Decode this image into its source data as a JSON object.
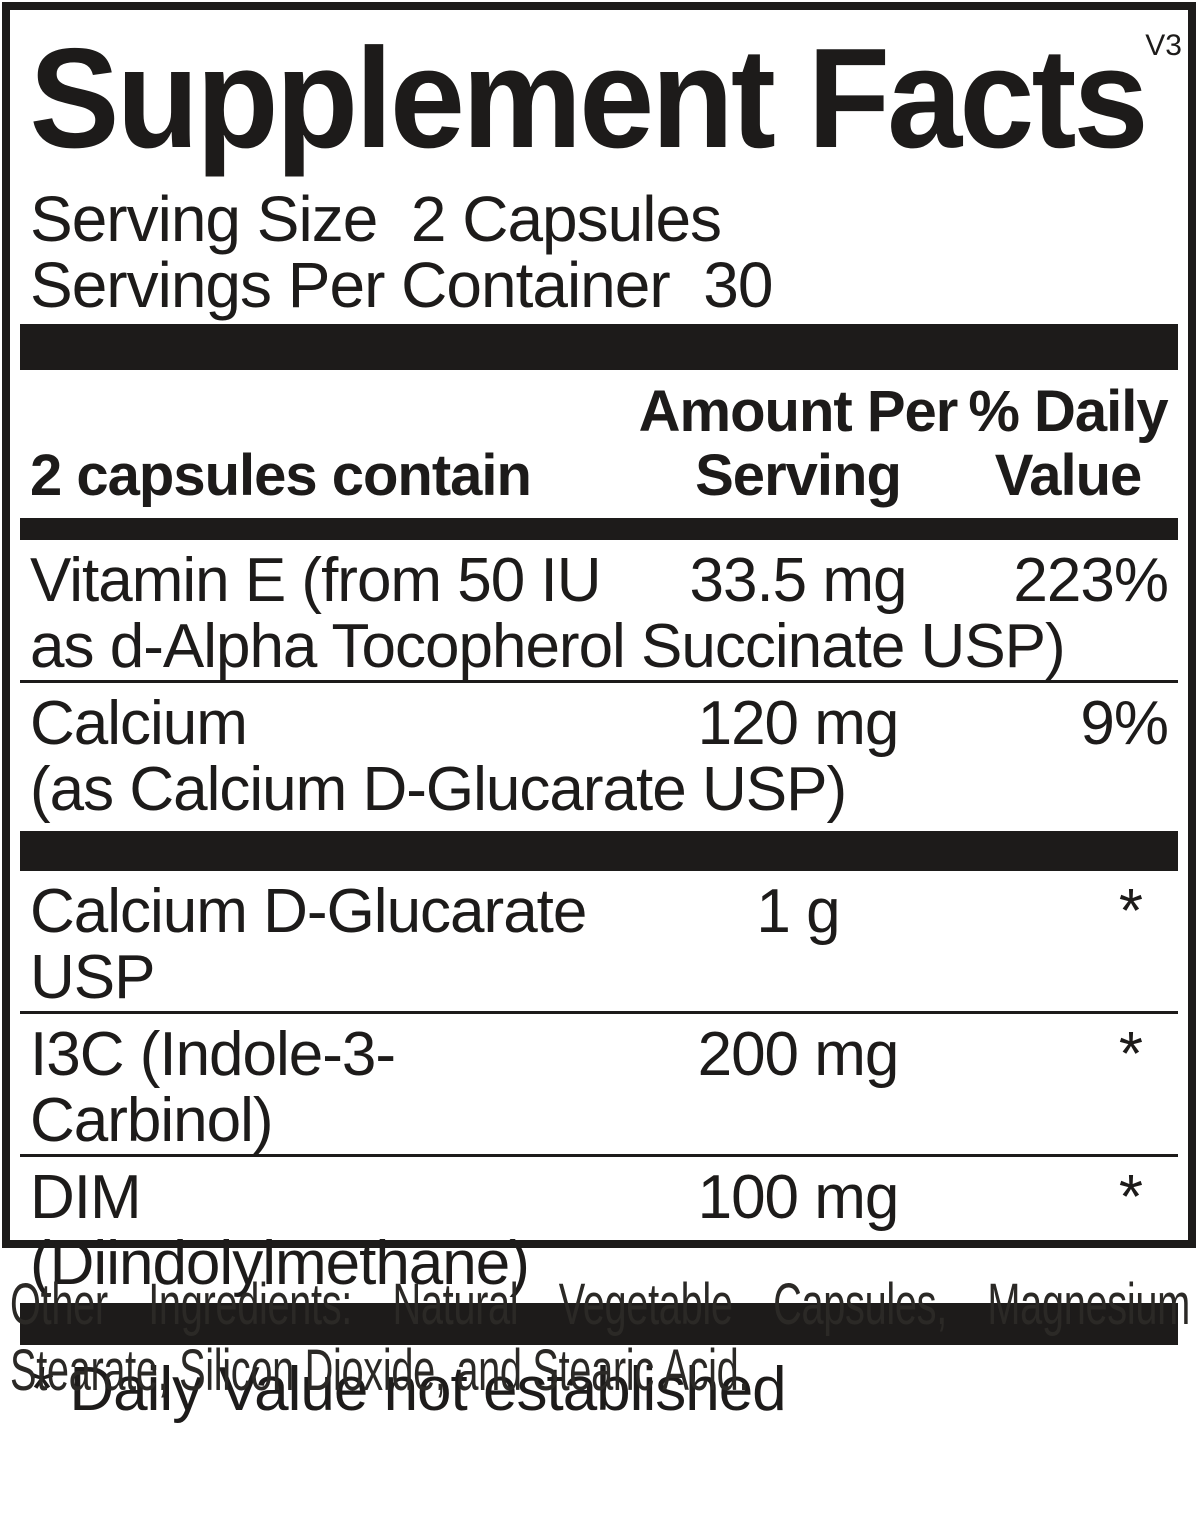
{
  "version": "V3",
  "title": "Supplement Facts",
  "serving_info": {
    "serving_size": "Serving Size  2 Capsules",
    "servings_per_container": "Servings Per Container  30"
  },
  "table": {
    "header": {
      "nutrient_col": "2 capsules contain",
      "amount_col_line1": "Amount Per",
      "amount_col_line2": "Serving",
      "dv_col_line1": "% Daily",
      "dv_col_line2": "Value"
    },
    "rows": [
      {
        "name": "Vitamin E (from 50 IU",
        "name_continued": "as d-Alpha Tocopherol Succinate USP)",
        "amount": "33.5 mg",
        "daily_value": "223%"
      },
      {
        "name": "Calcium",
        "name_continued": "(as Calcium D-Glucarate USP)",
        "amount": "120 mg",
        "daily_value": "9%"
      },
      {
        "name": "Calcium D-Glucarate USP",
        "amount": "1 g",
        "daily_value": "*"
      },
      {
        "name": "I3C (Indole-3-Carbinol)",
        "amount": "200 mg",
        "daily_value": "*"
      },
      {
        "name": "DIM (Diindolylmethane)",
        "amount": "100 mg",
        "daily_value": "*"
      }
    ],
    "footnote": "* Daily Value not established"
  },
  "other_ingredients": {
    "line1": "Other Ingredients: Natural Vegetable Capsules, Magnesium",
    "line2": "Stearate, Silicon Dioxide, and Stearic Acid."
  },
  "colors": {
    "ink": "#1d1b1a",
    "background": "#ffffff"
  }
}
